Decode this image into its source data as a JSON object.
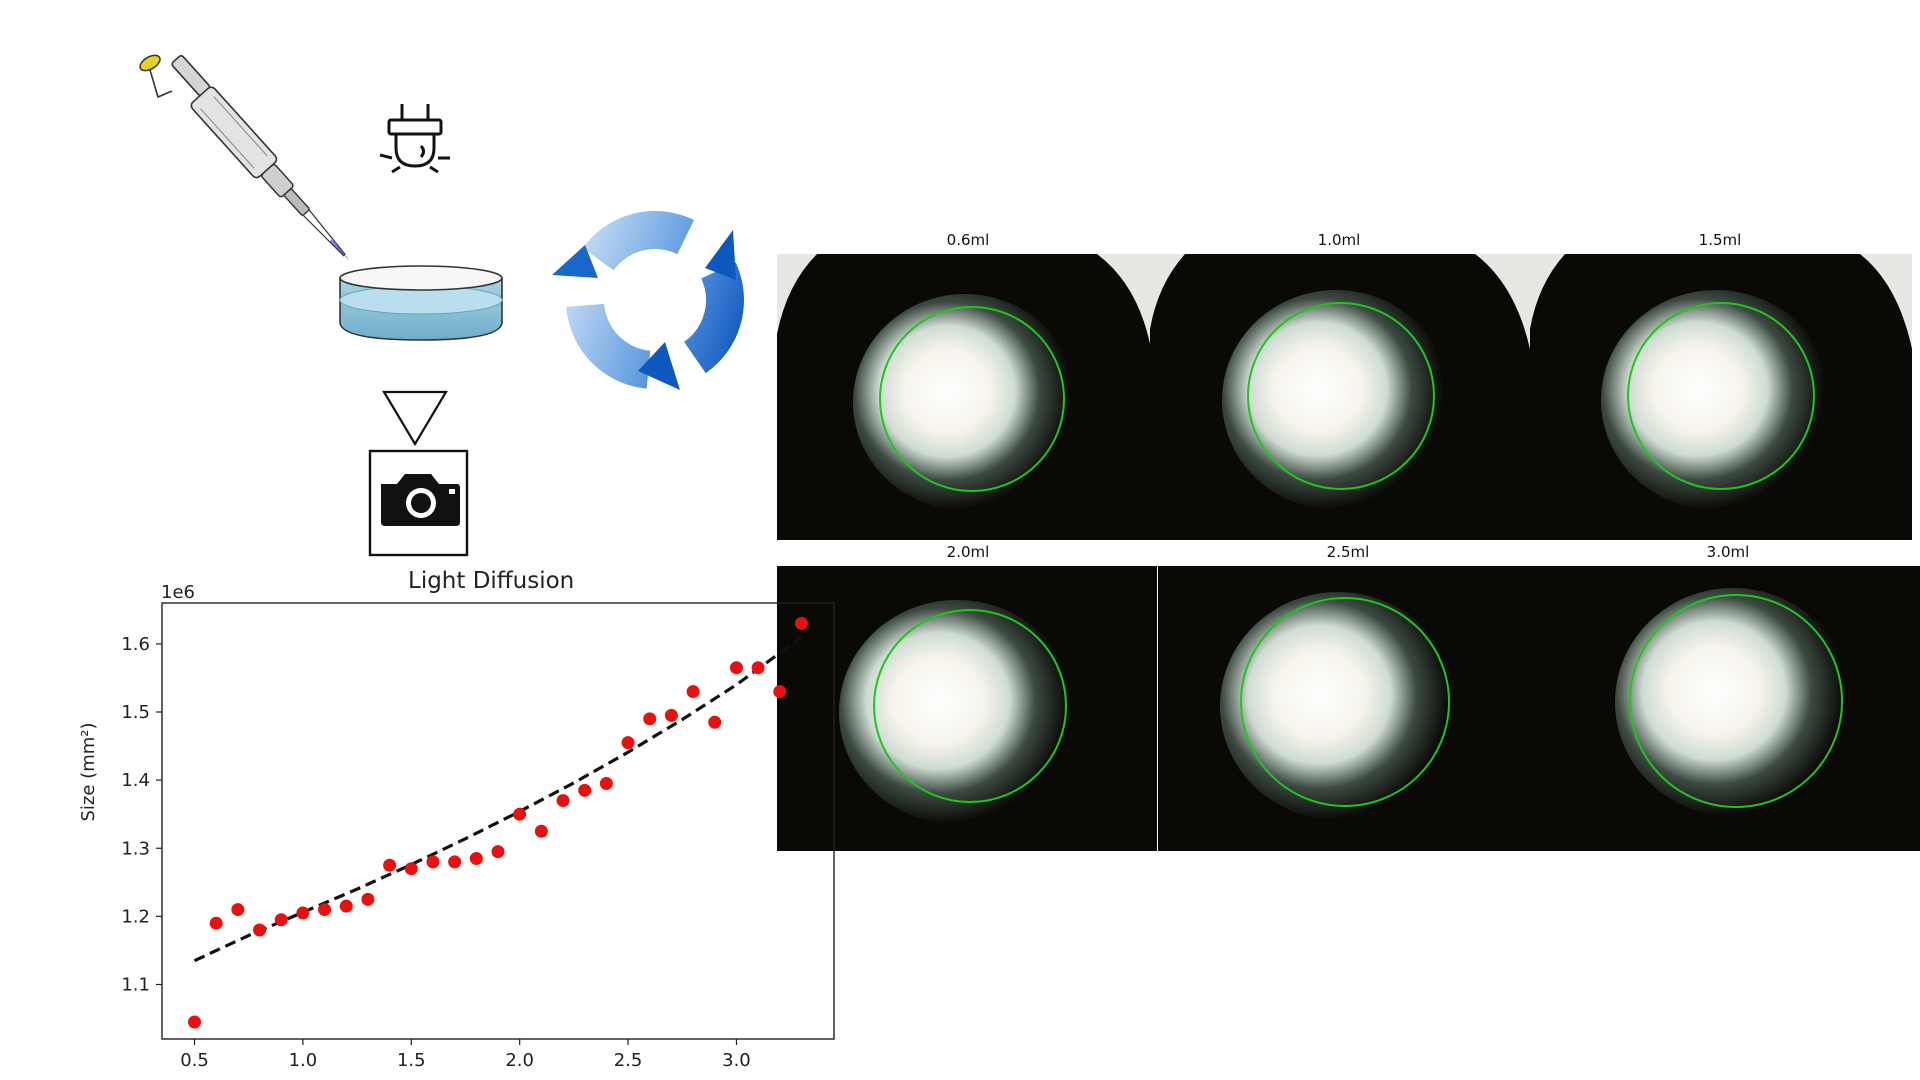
{
  "workflow": {
    "steps": [
      "pipette",
      "light-source",
      "petri-dish",
      "camera"
    ],
    "icons": [
      "pipette-icon",
      "plug-light-icon",
      "petri-dish-icon",
      "triangle-arrow-icon",
      "camera-icon",
      "refresh-cycle-icon"
    ],
    "colors": {
      "liquid": "#8fc3d8",
      "cycle_arrow": "#2a6fc4",
      "pipette_tip": "#6a5cff"
    }
  },
  "images": {
    "panels": [
      {
        "label": "0.6ml"
      },
      {
        "label": "1.0ml"
      },
      {
        "label": "1.5ml"
      },
      {
        "label": "2.0ml"
      },
      {
        "label": "2.5ml"
      },
      {
        "label": "3.0ml"
      }
    ],
    "circle_color": "#22c41e"
  },
  "chart_data": {
    "type": "scatter",
    "title": "Light Diffusion",
    "xlabel": "",
    "ylabel": "Size (mm²)",
    "y_offset_label": "1e6",
    "xlim": [
      0.35,
      3.45
    ],
    "ylim": [
      1.02,
      1.66
    ],
    "x_ticks": [
      0.5,
      1.0,
      1.5,
      2.0,
      2.5,
      3.0
    ],
    "x_tick_labels": [
      "0.5",
      "1.0",
      "1.5",
      "2.0",
      "2.5",
      "3.0"
    ],
    "y_ticks": [
      1.1,
      1.2,
      1.3,
      1.4,
      1.5,
      1.6
    ],
    "y_tick_labels": [
      "1.1",
      "1.2",
      "1.3",
      "1.4",
      "1.5",
      "1.6"
    ],
    "grid": false,
    "series": [
      {
        "kind": "points",
        "color": "#e8110f",
        "x": [
          0.5,
          0.6,
          0.7,
          0.8,
          0.9,
          1.0,
          1.1,
          1.2,
          1.3,
          1.4,
          1.5,
          1.6,
          1.7,
          1.8,
          1.9,
          2.0,
          2.1,
          2.2,
          2.3,
          2.4,
          2.5,
          2.6,
          2.7,
          2.8,
          2.9,
          3.0,
          3.1,
          3.2,
          3.3
        ],
        "y": [
          1.045,
          1.19,
          1.21,
          1.18,
          1.195,
          1.205,
          1.21,
          1.215,
          1.225,
          1.275,
          1.27,
          1.28,
          1.28,
          1.285,
          1.295,
          1.35,
          1.325,
          1.37,
          1.385,
          1.395,
          1.455,
          1.49,
          1.495,
          1.53,
          1.485,
          1.565,
          1.565,
          1.53,
          1.63
        ]
      },
      {
        "kind": "fit",
        "style": "dashed",
        "color": "#111111",
        "x": [
          0.5,
          0.75,
          1.0,
          1.25,
          1.5,
          1.75,
          2.0,
          2.25,
          2.5,
          2.75,
          3.0,
          3.3
        ],
        "y": [
          1.135,
          1.172,
          1.206,
          1.24,
          1.276,
          1.314,
          1.354,
          1.396,
          1.441,
          1.489,
          1.54,
          1.61
        ]
      }
    ]
  }
}
